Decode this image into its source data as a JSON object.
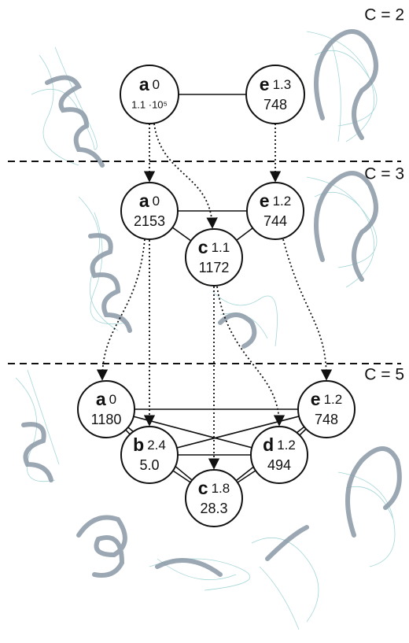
{
  "sections": [
    {
      "label": "C = 2",
      "nodes": [
        {
          "letter": "a",
          "value": "0",
          "count": "1.1 ·10⁵"
        },
        {
          "letter": "e",
          "value": "1.3",
          "count": "748"
        }
      ]
    },
    {
      "label": "C = 3",
      "nodes": [
        {
          "letter": "a",
          "value": "0",
          "count": "2153"
        },
        {
          "letter": "e",
          "value": "1.2",
          "count": "744"
        },
        {
          "letter": "c",
          "value": "1.1",
          "count": "1172"
        }
      ]
    },
    {
      "label": "C = 5",
      "nodes": [
        {
          "letter": "a",
          "value": "0",
          "count": "1180"
        },
        {
          "letter": "e",
          "value": "1.2",
          "count": "748"
        },
        {
          "letter": "b",
          "value": "2.4",
          "count": "5.0"
        },
        {
          "letter": "d",
          "value": "1.2",
          "count": "494"
        },
        {
          "letter": "c",
          "value": "1.8",
          "count": "28.3"
        }
      ]
    }
  ]
}
